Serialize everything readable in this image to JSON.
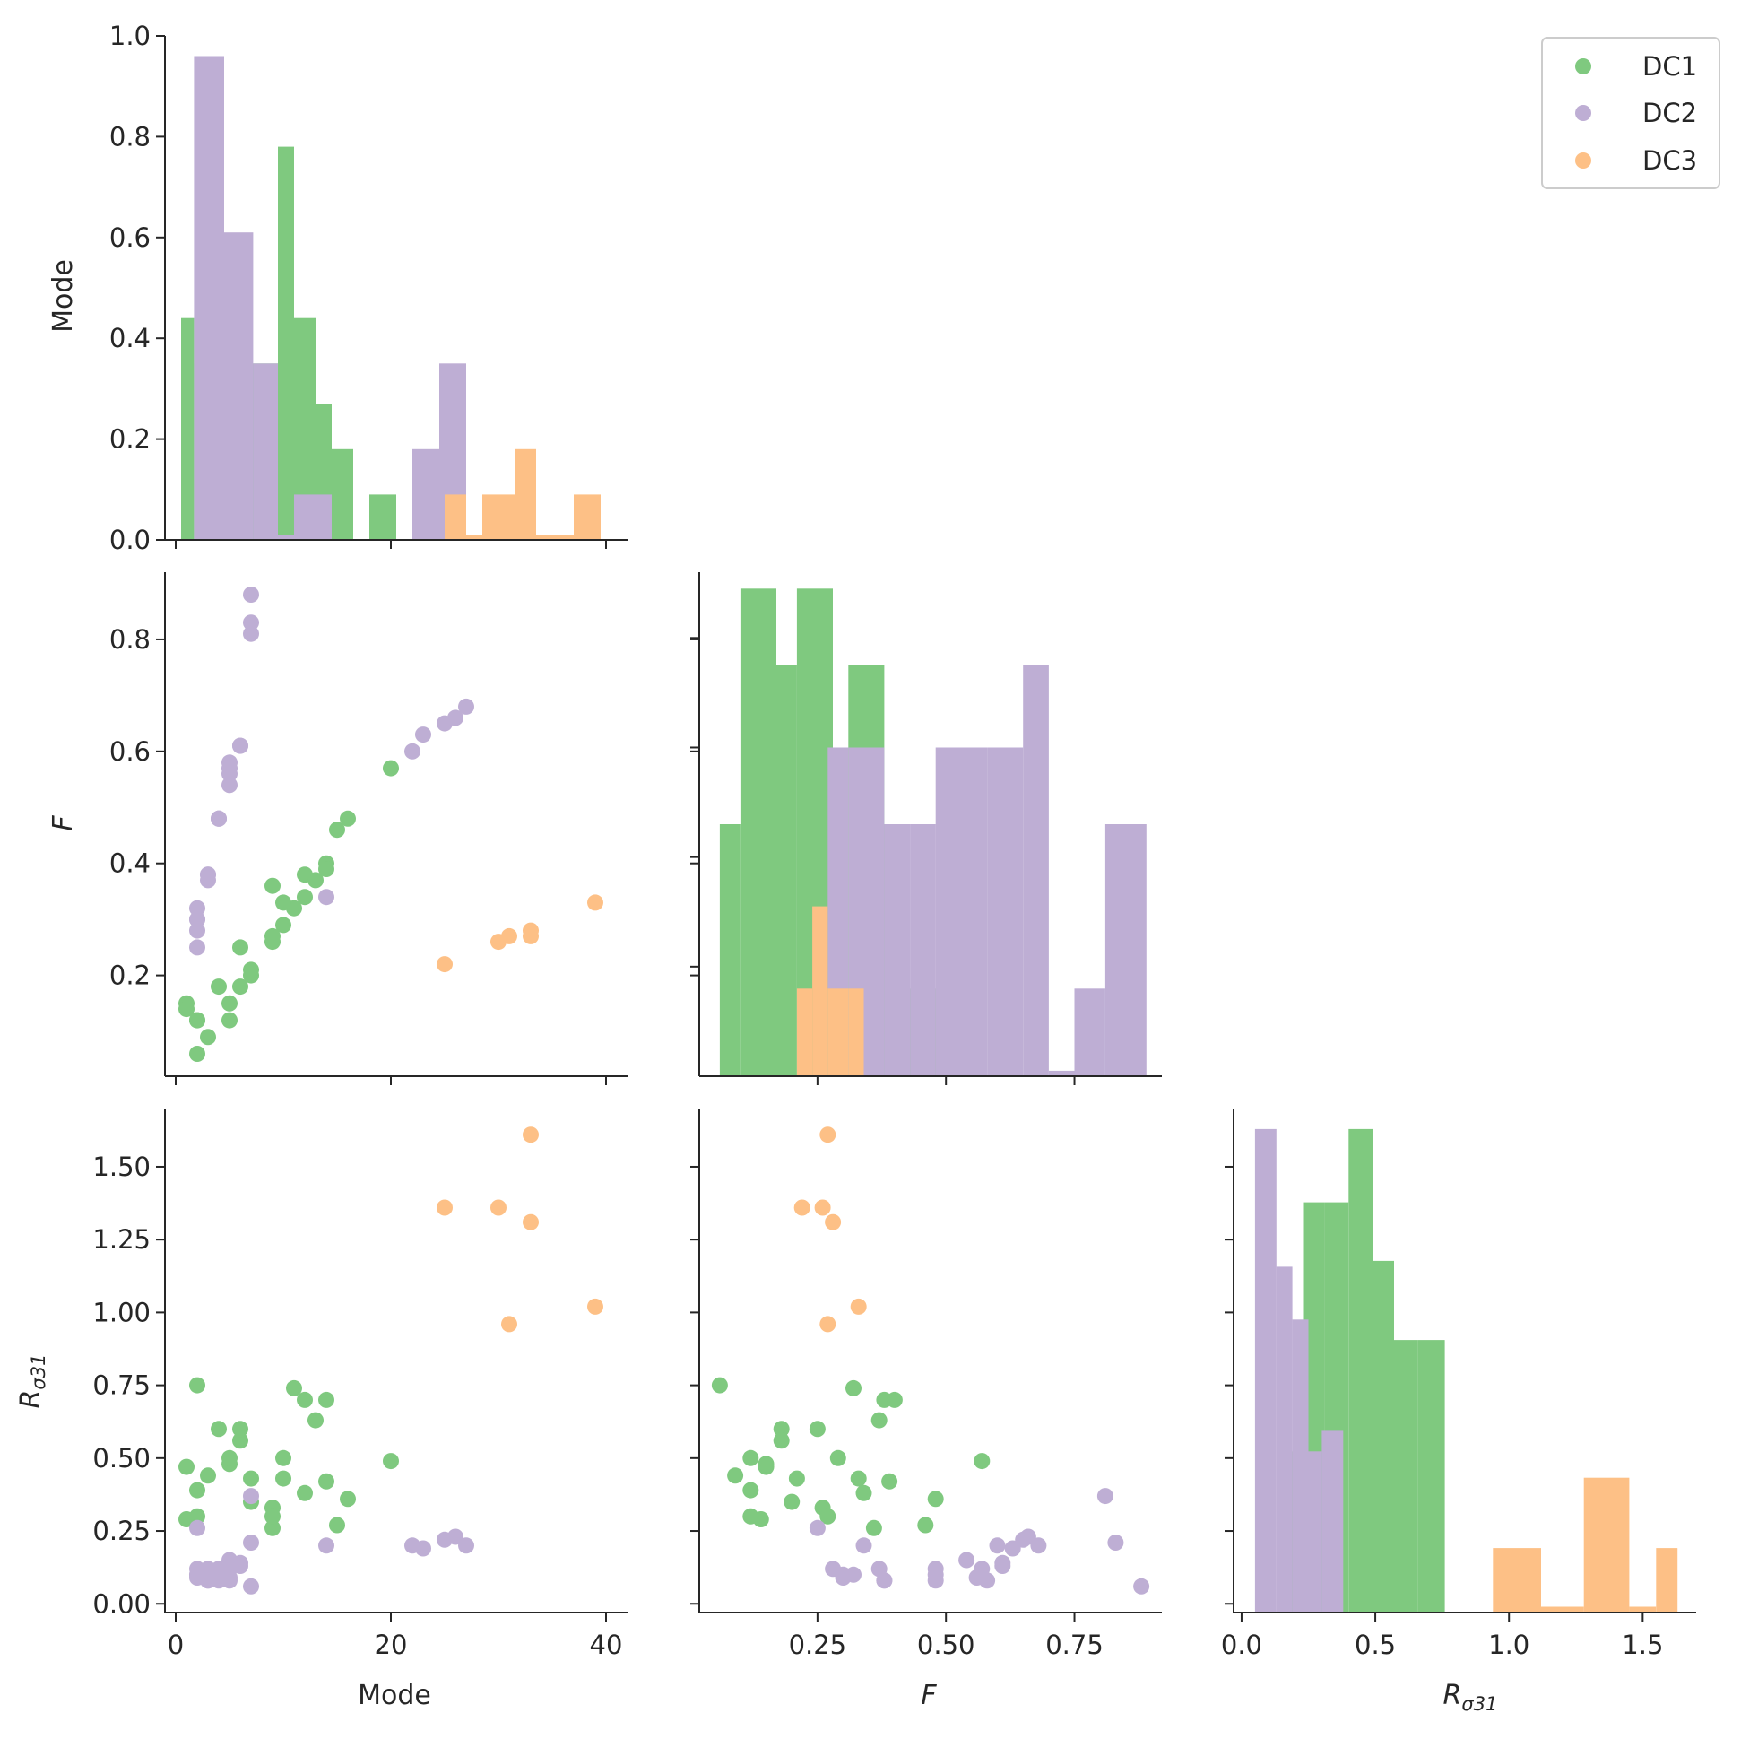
{
  "figure": {
    "kind": "seaborn pairplot (corner)"
  },
  "chart_data": {
    "type": "scatter",
    "variables": [
      "Mode",
      "F",
      "Rσ31"
    ],
    "var_labels": {
      "Mode": "Mode",
      "F": "F",
      "Rs": {
        "base": "R",
        "sub": "σ31"
      }
    },
    "legend": {
      "position": "top-right",
      "entries": [
        {
          "name": "DC1",
          "color": "#7fc97f"
        },
        {
          "name": "DC2",
          "color": "#beaed4"
        },
        {
          "name": "DC3",
          "color": "#fdc086"
        }
      ]
    },
    "axes": {
      "Mode": {
        "range": [
          -1,
          42
        ],
        "ticks": [
          0,
          20,
          40
        ],
        "tick_labels": [
          "0",
          "20",
          "40"
        ]
      },
      "F": {
        "range": [
          0.02,
          0.92
        ],
        "row_ticks": [
          0.2,
          0.4,
          0.6,
          0.8
        ],
        "row_tick_labels": [
          "0.2",
          "0.4",
          "0.6",
          "0.8"
        ],
        "col_ticks": [
          0.25,
          0.5,
          0.75
        ],
        "col_tick_labels": [
          "0.25",
          "0.50",
          "0.75"
        ]
      },
      "Rs": {
        "range": [
          -0.03,
          1.7
        ],
        "row_ticks": [
          0.0,
          0.25,
          0.5,
          0.75,
          1.0,
          1.25,
          1.5
        ],
        "row_tick_labels": [
          "0.00",
          "0.25",
          "0.50",
          "0.75",
          "1.00",
          "1.25",
          "1.50"
        ],
        "col_ticks": [
          0.0,
          0.5,
          1.0,
          1.5
        ],
        "col_tick_labels": [
          "0.0",
          "0.5",
          "1.0",
          "1.5"
        ]
      },
      "diag_Mode_y": {
        "range": [
          0,
          1.0
        ],
        "ticks": [
          0.0,
          0.2,
          0.4,
          0.6,
          0.8,
          1.0
        ],
        "tick_labels": [
          "0.0",
          "0.2",
          "0.4",
          "0.6",
          "0.8",
          "1.0"
        ]
      }
    },
    "series": [
      {
        "name": "DC1",
        "Mode": [
          1,
          1,
          2,
          2,
          3,
          4,
          5,
          6,
          7,
          7,
          9,
          9,
          10,
          11,
          12,
          13,
          14,
          14,
          15,
          16,
          20,
          2,
          5,
          6,
          9,
          10,
          12
        ],
        "F": [
          0.15,
          0.14,
          0.06,
          0.12,
          0.09,
          0.18,
          0.15,
          0.18,
          0.21,
          0.2,
          0.36,
          0.26,
          0.29,
          0.32,
          0.38,
          0.37,
          0.4,
          0.39,
          0.46,
          0.48,
          0.57,
          0.12,
          0.12,
          0.25,
          0.27,
          0.33,
          0.34
        ],
        "Rs": [
          0.47,
          0.29,
          0.75,
          0.39,
          0.44,
          0.6,
          0.48,
          0.56,
          0.43,
          0.35,
          0.26,
          0.33,
          0.5,
          0.74,
          0.7,
          0.63,
          0.7,
          0.42,
          0.27,
          0.36,
          0.49,
          0.3,
          0.5,
          0.6,
          0.3,
          0.43,
          0.38
        ]
      },
      {
        "name": "DC2",
        "Mode": [
          2,
          2,
          2,
          2,
          3,
          3,
          4,
          4,
          5,
          5,
          5,
          6,
          7,
          7,
          7,
          14,
          22,
          23,
          25,
          26,
          27,
          2,
          3,
          4,
          5,
          6
        ],
        "F": [
          0.25,
          0.28,
          0.3,
          0.32,
          0.37,
          0.38,
          0.48,
          0.48,
          0.54,
          0.57,
          0.58,
          0.61,
          0.81,
          0.83,
          0.88,
          0.34,
          0.6,
          0.63,
          0.65,
          0.66,
          0.68,
          0.3,
          0.38,
          0.48,
          0.56,
          0.61
        ],
        "Rs": [
          0.26,
          0.12,
          0.09,
          0.1,
          0.12,
          0.08,
          0.1,
          0.08,
          0.15,
          0.12,
          0.08,
          0.13,
          0.37,
          0.21,
          0.06,
          0.2,
          0.2,
          0.19,
          0.22,
          0.23,
          0.2,
          0.1,
          0.08,
          0.12,
          0.09,
          0.14
        ]
      },
      {
        "name": "DC3",
        "Mode": [
          25,
          30,
          31,
          33,
          33,
          39
        ],
        "F": [
          0.22,
          0.26,
          0.27,
          0.28,
          0.27,
          0.33
        ],
        "Rs": [
          1.36,
          1.36,
          0.96,
          1.31,
          1.61,
          1.02
        ]
      }
    ],
    "histograms": {
      "Mode": [
        {
          "name": "DC1",
          "bins": [
            [
              0.5,
              1.7,
              0.44
            ],
            [
              1.7,
              9.5,
              0.35
            ],
            [
              9.5,
              11.0,
              0.78
            ],
            [
              11.0,
              13.0,
              0.44
            ],
            [
              13.0,
              14.5,
              0.27
            ],
            [
              14.5,
              16.5,
              0.18
            ],
            [
              18.0,
              20.5,
              0.09
            ]
          ]
        },
        {
          "name": "DC2",
          "bins": [
            [
              1.7,
              4.5,
              0.96
            ],
            [
              4.5,
              7.2,
              0.61
            ],
            [
              7.2,
              9.5,
              0.35
            ],
            [
              9.5,
              11.0,
              0.01
            ],
            [
              11.0,
              14.5,
              0.09
            ],
            [
              22.0,
              24.5,
              0.18
            ],
            [
              24.5,
              27.0,
              0.35
            ]
          ]
        },
        {
          "name": "DC3",
          "bins": [
            [
              25.0,
              27.0,
              0.09
            ],
            [
              27.0,
              28.5,
              0.01
            ],
            [
              28.5,
              31.5,
              0.09
            ],
            [
              31.5,
              33.5,
              0.18
            ],
            [
              33.5,
              37.0,
              0.01
            ],
            [
              37.0,
              39.5,
              0.09
            ]
          ]
        }
      ],
      "F": [
        {
          "name": "DC1",
          "bins": [
            [
              0.06,
              0.1,
              0.46
            ],
            [
              0.1,
              0.17,
              0.89
            ],
            [
              0.17,
              0.21,
              0.75
            ],
            [
              0.21,
              0.28,
              0.89
            ],
            [
              0.28,
              0.31,
              0.6
            ],
            [
              0.31,
              0.38,
              0.75
            ],
            [
              0.38,
              0.42,
              0.46
            ],
            [
              0.42,
              0.5,
              0.16
            ],
            [
              0.5,
              0.57,
              0.16
            ]
          ]
        },
        {
          "name": "DC2",
          "bins": [
            [
              0.27,
              0.31,
              0.6
            ],
            [
              0.31,
              0.38,
              0.6
            ],
            [
              0.38,
              0.43,
              0.46
            ],
            [
              0.43,
              0.48,
              0.46
            ],
            [
              0.48,
              0.58,
              0.6
            ],
            [
              0.58,
              0.65,
              0.6
            ],
            [
              0.65,
              0.7,
              0.75
            ],
            [
              0.7,
              0.75,
              0.01
            ],
            [
              0.75,
              0.81,
              0.16
            ],
            [
              0.81,
              0.89,
              0.46
            ]
          ]
        },
        {
          "name": "DC3",
          "bins": [
            [
              0.21,
              0.24,
              0.16
            ],
            [
              0.24,
              0.27,
              0.31
            ],
            [
              0.27,
              0.31,
              0.16
            ],
            [
              0.31,
              0.34,
              0.16
            ]
          ]
        }
      ],
      "Rs": [
        {
          "name": "DC1",
          "bins": [
            [
              0.18,
              0.23,
              0.55
            ],
            [
              0.23,
              0.31,
              1.4
            ],
            [
              0.31,
              0.4,
              1.4
            ],
            [
              0.4,
              0.49,
              1.65
            ],
            [
              0.49,
              0.57,
              1.2
            ],
            [
              0.57,
              0.66,
              0.93
            ],
            [
              0.66,
              0.76,
              0.93
            ]
          ]
        },
        {
          "name": "DC2",
          "bins": [
            [
              0.05,
              0.13,
              1.65
            ],
            [
              0.13,
              0.19,
              1.18
            ],
            [
              0.19,
              0.25,
              1.0
            ],
            [
              0.25,
              0.3,
              0.55
            ],
            [
              0.3,
              0.38,
              0.62
            ]
          ]
        },
        {
          "name": "DC3",
          "bins": [
            [
              0.94,
              1.12,
              0.22
            ],
            [
              1.12,
              1.28,
              0.02
            ],
            [
              1.28,
              1.45,
              0.46
            ],
            [
              1.45,
              1.55,
              0.02
            ],
            [
              1.55,
              1.63,
              0.22
            ]
          ]
        }
      ]
    }
  }
}
